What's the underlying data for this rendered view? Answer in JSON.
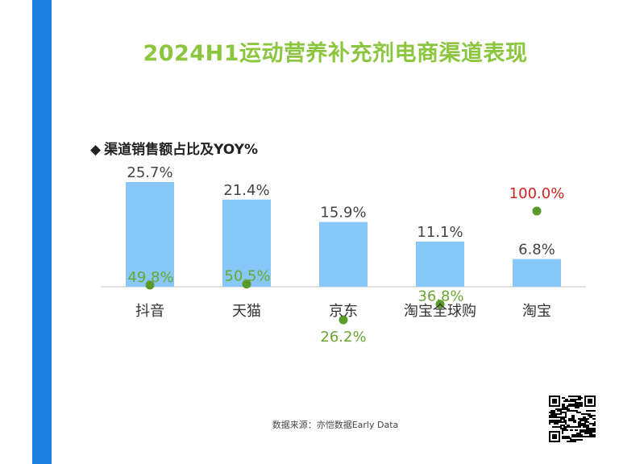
{
  "page": {
    "title": "2024H1运动营养补充剂电商渠道表现",
    "subtitle_marker": "◆",
    "subtitle": "渠道销售额占比及YOY%",
    "source": "数据来源：亦恺数据Early Data"
  },
  "colors": {
    "accent_bar": "#1b7fe0",
    "title": "#8cc63f",
    "bar": "#87c8f8",
    "yoy_dot": "#5a9a2a",
    "yoy_label": "#6aa632",
    "highlight_label": "#d0231c",
    "share_label": "#444444"
  },
  "icons": {
    "qr": "qr-code-icon"
  },
  "chart_data": {
    "type": "bar",
    "title": "渠道销售额占比及YOY%",
    "categories": [
      "抖音",
      "天猫",
      "京东",
      "淘宝全球购",
      "淘宝"
    ],
    "series": [
      {
        "values": [
          25.7,
          21.4,
          15.9,
          11.1,
          6.8
        ],
        "labels": [
          "25.7%",
          "21.4%",
          "15.9%",
          "11.1%",
          "6.8%"
        ]
      },
      {
        "values": [
          49.8,
          50.5,
          26.2,
          36.8,
          100.0
        ],
        "labels": [
          "49.8%",
          "50.5%",
          "26.2%",
          "36.8%",
          "100.0%"
        ]
      }
    ],
    "share_range": [
      0,
      25.7
    ],
    "yoy_range": [
      0,
      100
    ],
    "highlight_index": 4,
    "grid": false,
    "legend": "none"
  }
}
